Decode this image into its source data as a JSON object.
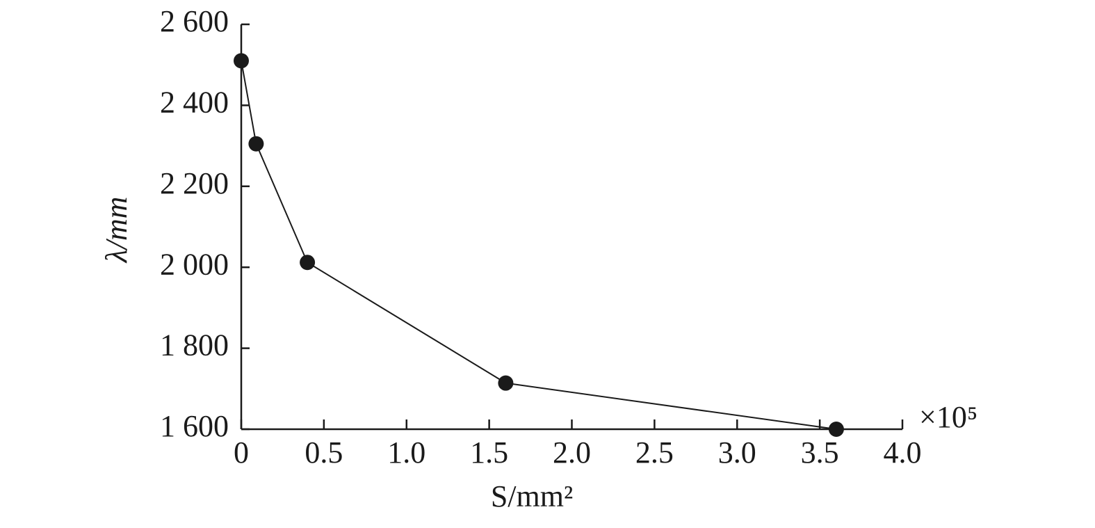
{
  "chart_data": {
    "type": "line",
    "x": [
      0,
      0.09,
      0.4,
      1.6,
      3.6
    ],
    "values": [
      2510,
      2305,
      2012,
      1714,
      1600
    ],
    "color": "#1a1a1a",
    "xlabel": "S/mm²",
    "ylabel": "λ/mm",
    "x_multiplier": "×10⁵",
    "xlim": [
      0,
      4.0
    ],
    "ylim": [
      1600,
      2600
    ],
    "xticks": [
      0,
      0.5,
      {
        "value": 1,
        "label": "1.0"
      },
      1.5,
      {
        "value": 2,
        "label": "2.0"
      },
      2.5,
      {
        "value": 3,
        "label": "3.0"
      },
      3.5,
      {
        "value": 4,
        "label": "4.0"
      }
    ],
    "yticks": [
      {
        "value": 1600,
        "label": "1 600"
      },
      {
        "value": 1800,
        "label": "1 800"
      },
      {
        "value": 2000,
        "label": "2 000"
      },
      {
        "value": 2200,
        "label": "2 200"
      },
      {
        "value": 2400,
        "label": "2 400"
      },
      {
        "value": 2600,
        "label": "2 600"
      }
    ],
    "grid": false
  }
}
